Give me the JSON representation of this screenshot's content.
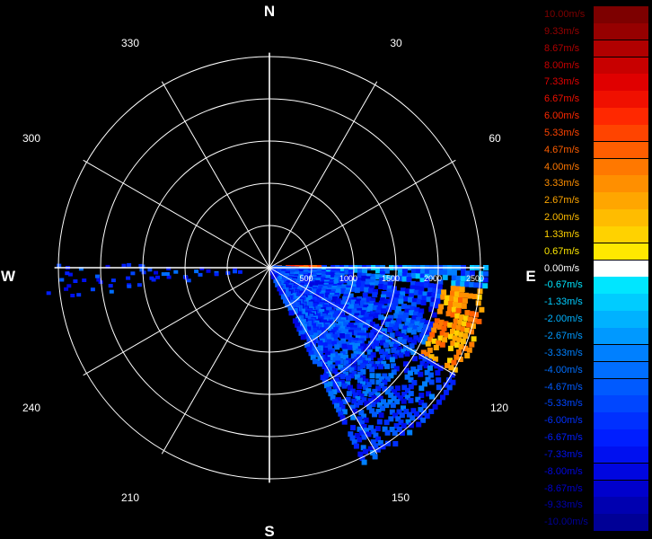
{
  "chart_data": {
    "type": "polar_radar_sector",
    "title": "",
    "compass_labels": [
      "N",
      "E",
      "S",
      "W"
    ],
    "angle_labels": [
      "30",
      "60",
      "120",
      "150",
      "210",
      "240",
      "300",
      "330"
    ],
    "range_labels": [
      "500",
      "1000",
      "1500",
      "2000",
      "2500"
    ],
    "range_max": 2600,
    "ring_values": [
      500,
      1000,
      1500,
      2000,
      2500
    ],
    "spoke_angles_deg": [
      0,
      30,
      60,
      90,
      120,
      150,
      180,
      210,
      240,
      270,
      300,
      330
    ],
    "grid": true,
    "legend_placement": "right",
    "scan_sector_deg": [
      90,
      155
    ],
    "scan_max_range": 2600,
    "colorbar": {
      "unit": "m/s",
      "entries": [
        {
          "label": "10.00m/s",
          "value": 10.0,
          "color": "#7d0000"
        },
        {
          "label": "9.33m/s",
          "value": 9.33,
          "color": "#960000"
        },
        {
          "label": "8.67m/s",
          "value": 8.67,
          "color": "#b00000"
        },
        {
          "label": "8.00m/s",
          "value": 8.0,
          "color": "#c80000"
        },
        {
          "label": "7.33m/s",
          "value": 7.33,
          "color": "#e00000"
        },
        {
          "label": "6.67m/s",
          "value": 6.67,
          "color": "#f01000"
        },
        {
          "label": "6.00m/s",
          "value": 6.0,
          "color": "#ff2800"
        },
        {
          "label": "5.33m/s",
          "value": 5.33,
          "color": "#ff4400"
        },
        {
          "label": "4.67m/s",
          "value": 4.67,
          "color": "#ff5e00"
        },
        {
          "label": "4.00m/s",
          "value": 4.0,
          "color": "#ff7800"
        },
        {
          "label": "3.33m/s",
          "value": 3.33,
          "color": "#ff8f00"
        },
        {
          "label": "2.67m/s",
          "value": 2.67,
          "color": "#ffa600"
        },
        {
          "label": "2.00m/s",
          "value": 2.0,
          "color": "#ffbc00"
        },
        {
          "label": "1.33m/s",
          "value": 1.33,
          "color": "#ffd200"
        },
        {
          "label": "0.67m/s",
          "value": 0.67,
          "color": "#ffe800"
        },
        {
          "label": "0.00m/s",
          "value": 0.0,
          "color": "#ffffff"
        },
        {
          "label": "-0.67m/s",
          "value": -0.67,
          "color": "#00e6ff"
        },
        {
          "label": "-1.33m/s",
          "value": -1.33,
          "color": "#00ccff"
        },
        {
          "label": "-2.00m/s",
          "value": -2.0,
          "color": "#00b2ff"
        },
        {
          "label": "-2.67m/s",
          "value": -2.67,
          "color": "#0099ff"
        },
        {
          "label": "-3.33m/s",
          "value": -3.33,
          "color": "#0080ff"
        },
        {
          "label": "-4.00m/s",
          "value": -4.0,
          "color": "#006eff"
        },
        {
          "label": "-4.67m/s",
          "value": -4.67,
          "color": "#005aff"
        },
        {
          "label": "-5.33m/s",
          "value": -5.33,
          "color": "#0046ff"
        },
        {
          "label": "-6.00m/s",
          "value": -6.0,
          "color": "#0030ff"
        },
        {
          "label": "-6.67m/s",
          "value": -6.67,
          "color": "#001eff"
        },
        {
          "label": "-7.33m/s",
          "value": -7.33,
          "color": "#0010f0"
        },
        {
          "label": "-8.00m/s",
          "value": -8.0,
          "color": "#0006e0"
        },
        {
          "label": "-8.67m/s",
          "value": -8.67,
          "color": "#0000cc"
        },
        {
          "label": "-9.33m/s",
          "value": -9.33,
          "color": "#0000b0"
        },
        {
          "label": "-10.00m/s",
          "value": -10.0,
          "color": "#000096"
        }
      ]
    }
  }
}
